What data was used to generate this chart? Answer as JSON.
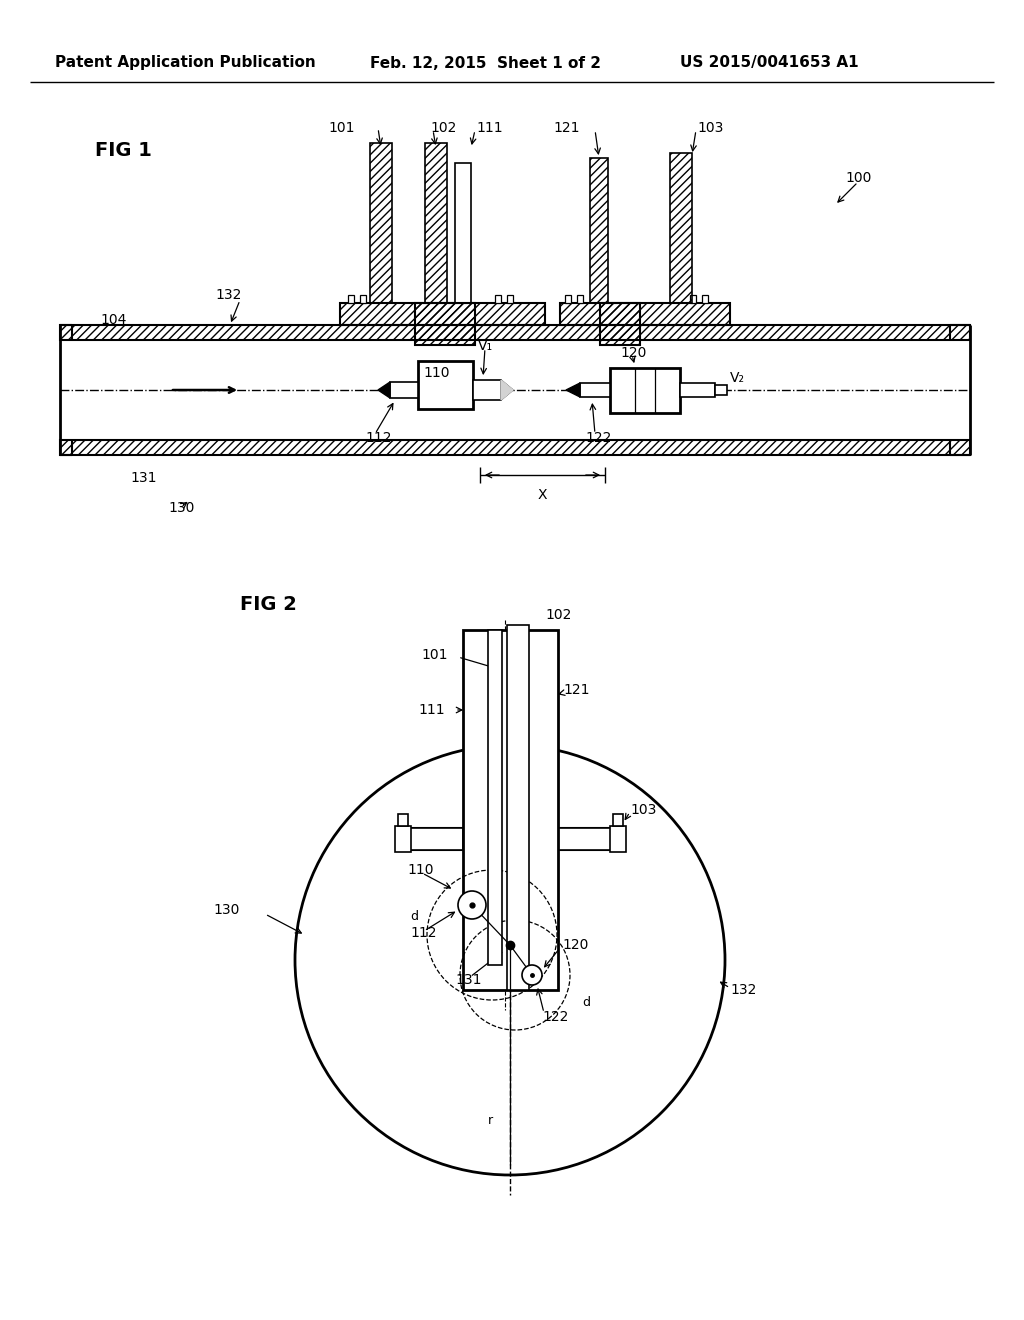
{
  "background_color": "#ffffff",
  "header_left": "Patent Application Publication",
  "header_mid": "Feb. 12, 2015  Sheet 1 of 2",
  "header_right": "US 2015/0041653 A1",
  "fig1_label": "FIG 1",
  "fig2_label": "FIG 2",
  "label_100": "100",
  "label_101": "101",
  "label_102": "102",
  "label_103": "103",
  "label_104": "104",
  "label_110": "110",
  "label_111": "111",
  "label_112": "112",
  "label_120": "120",
  "label_121": "121",
  "label_122": "122",
  "label_130": "130",
  "label_131": "131",
  "label_132": "132",
  "label_V1": "V₁",
  "label_V2": "V₂",
  "label_X": "X",
  "label_d1": "d",
  "label_d2": "d",
  "label_r": "r",
  "line_color": "#000000",
  "font_size_header": 11,
  "font_size_label": 10,
  "font_size_fig": 14
}
